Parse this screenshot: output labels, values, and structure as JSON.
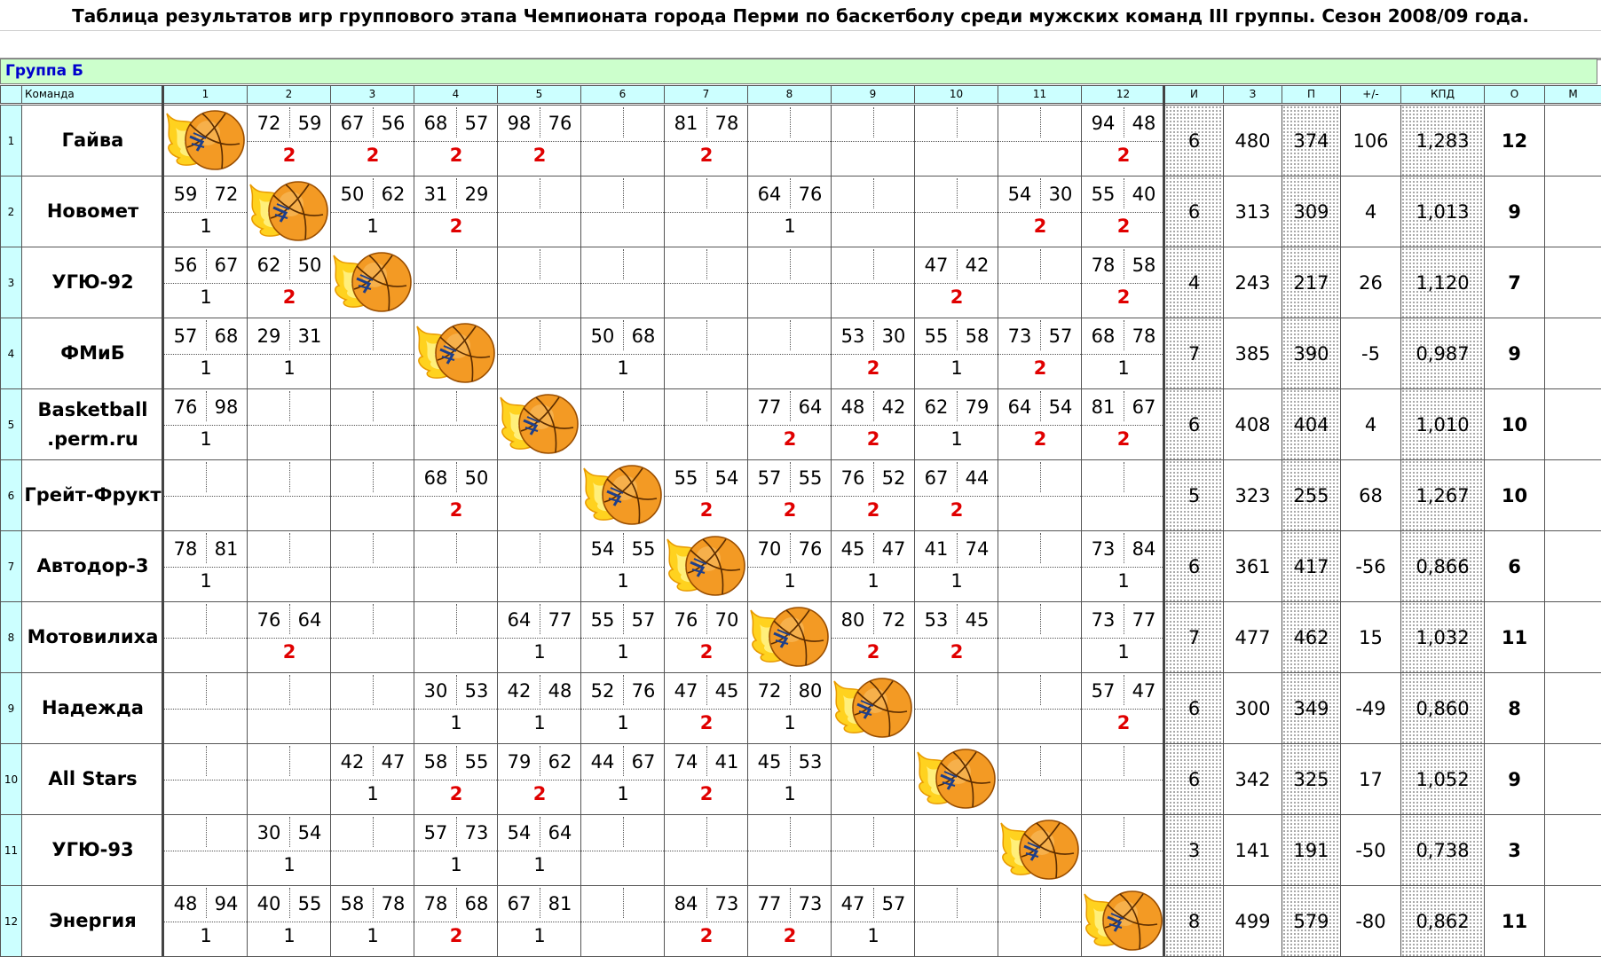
{
  "title": "Таблица результатов игр группового этапа Чемпионата города Перми по баскетболу среди мужских команд III группы. Сезон 2008/09 года.",
  "group_title": "Группа Б",
  "colors": {
    "header_bg": "#ccffff",
    "group_bg": "#ccffcc",
    "win_points": "#e00000",
    "group_text": "#0000cc"
  },
  "headers": {
    "team": "Команда",
    "opponents": [
      "1",
      "2",
      "3",
      "4",
      "5",
      "6",
      "7",
      "8",
      "9",
      "10",
      "11",
      "12"
    ],
    "stats": [
      "И",
      "З",
      "П",
      "+/-",
      "КПД",
      "О",
      "М"
    ]
  },
  "diagonal_icon": "flaming-basketball-icon",
  "rows": [
    {
      "num": "1",
      "team": "Гайва",
      "games": 6,
      "scored": 480,
      "conceded": 374,
      "diff": "106",
      "kpd": "1,283",
      "points": "12",
      "place": "",
      "cells": [
        null,
        [
          "72",
          "59",
          "2"
        ],
        [
          "67",
          "56",
          "2"
        ],
        [
          "68",
          "57",
          "2"
        ],
        [
          "98",
          "76",
          "2"
        ],
        null,
        [
          "81",
          "78",
          "2"
        ],
        null,
        null,
        null,
        null,
        [
          "94",
          "48",
          "2"
        ]
      ]
    },
    {
      "num": "2",
      "team": "Новомет",
      "games": 6,
      "scored": 313,
      "conceded": 309,
      "diff": "4",
      "kpd": "1,013",
      "points": "9",
      "place": "",
      "cells": [
        [
          "59",
          "72",
          "1"
        ],
        null,
        [
          "50",
          "62",
          "1"
        ],
        [
          "31",
          "29",
          "2"
        ],
        null,
        null,
        null,
        [
          "64",
          "76",
          "1"
        ],
        null,
        null,
        [
          "54",
          "30",
          "2"
        ],
        [
          "55",
          "40",
          "2"
        ]
      ]
    },
    {
      "num": "3",
      "team": "УГЮ-92",
      "games": 4,
      "scored": 243,
      "conceded": 217,
      "diff": "26",
      "kpd": "1,120",
      "points": "7",
      "place": "",
      "cells": [
        [
          "56",
          "67",
          "1"
        ],
        [
          "62",
          "50",
          "2"
        ],
        null,
        null,
        null,
        null,
        null,
        null,
        null,
        [
          "47",
          "42",
          "2"
        ],
        null,
        [
          "78",
          "58",
          "2"
        ]
      ]
    },
    {
      "num": "4",
      "team": "ФМиБ",
      "games": 7,
      "scored": 385,
      "conceded": 390,
      "diff": "-5",
      "kpd": "0,987",
      "points": "9",
      "place": "",
      "cells": [
        [
          "57",
          "68",
          "1"
        ],
        [
          "29",
          "31",
          "1"
        ],
        null,
        null,
        null,
        [
          "50",
          "68",
          "1"
        ],
        null,
        null,
        [
          "53",
          "30",
          "2"
        ],
        [
          "55",
          "58",
          "1"
        ],
        [
          "73",
          "57",
          "2"
        ],
        [
          "68",
          "78",
          "1"
        ]
      ]
    },
    {
      "num": "5",
      "team": "Basketball .perm.ru",
      "games": 6,
      "scored": 408,
      "conceded": 404,
      "diff": "4",
      "kpd": "1,010",
      "points": "10",
      "place": "",
      "cells": [
        [
          "76",
          "98",
          "1"
        ],
        null,
        null,
        null,
        null,
        null,
        null,
        [
          "77",
          "64",
          "2"
        ],
        [
          "48",
          "42",
          "2"
        ],
        [
          "62",
          "79",
          "1"
        ],
        [
          "64",
          "54",
          "2"
        ],
        [
          "81",
          "67",
          "2"
        ]
      ]
    },
    {
      "num": "6",
      "team": "Грейт-Фрукт",
      "games": 5,
      "scored": 323,
      "conceded": 255,
      "diff": "68",
      "kpd": "1,267",
      "points": "10",
      "place": "",
      "cells": [
        null,
        null,
        null,
        [
          "68",
          "50",
          "2"
        ],
        null,
        null,
        [
          "55",
          "54",
          "2"
        ],
        [
          "57",
          "55",
          "2"
        ],
        [
          "76",
          "52",
          "2"
        ],
        [
          "67",
          "44",
          "2"
        ],
        null,
        null
      ]
    },
    {
      "num": "7",
      "team": "Автодор-3",
      "games": 6,
      "scored": 361,
      "conceded": 417,
      "diff": "-56",
      "kpd": "0,866",
      "points": "6",
      "place": "",
      "cells": [
        [
          "78",
          "81",
          "1"
        ],
        null,
        null,
        null,
        null,
        [
          "54",
          "55",
          "1"
        ],
        null,
        [
          "70",
          "76",
          "1"
        ],
        [
          "45",
          "47",
          "1"
        ],
        [
          "41",
          "74",
          "1"
        ],
        null,
        [
          "73",
          "84",
          "1"
        ]
      ]
    },
    {
      "num": "8",
      "team": "Мотовилиха",
      "games": 7,
      "scored": 477,
      "conceded": 462,
      "diff": "15",
      "kpd": "1,032",
      "points": "11",
      "place": "",
      "cells": [
        null,
        [
          "76",
          "64",
          "2"
        ],
        null,
        null,
        [
          "64",
          "77",
          "1"
        ],
        [
          "55",
          "57",
          "1"
        ],
        [
          "76",
          "70",
          "2"
        ],
        null,
        [
          "80",
          "72",
          "2"
        ],
        [
          "53",
          "45",
          "2"
        ],
        null,
        [
          "73",
          "77",
          "1"
        ]
      ]
    },
    {
      "num": "9",
      "team": "Надежда",
      "games": 6,
      "scored": 300,
      "conceded": 349,
      "diff": "-49",
      "kpd": "0,860",
      "points": "8",
      "place": "",
      "cells": [
        null,
        null,
        null,
        [
          "30",
          "53",
          "1"
        ],
        [
          "42",
          "48",
          "1"
        ],
        [
          "52",
          "76",
          "1"
        ],
        [
          "47",
          "45",
          "2"
        ],
        [
          "72",
          "80",
          "1"
        ],
        null,
        null,
        null,
        [
          "57",
          "47",
          "2"
        ]
      ]
    },
    {
      "num": "10",
      "team": "All Stars",
      "games": 6,
      "scored": 342,
      "conceded": 325,
      "diff": "17",
      "kpd": "1,052",
      "points": "9",
      "place": "",
      "cells": [
        null,
        null,
        [
          "42",
          "47",
          "1"
        ],
        [
          "58",
          "55",
          "2"
        ],
        [
          "79",
          "62",
          "2"
        ],
        [
          "44",
          "67",
          "1"
        ],
        [
          "74",
          "41",
          "2"
        ],
        [
          "45",
          "53",
          "1"
        ],
        null,
        null,
        null,
        null
      ]
    },
    {
      "num": "11",
      "team": "УГЮ-93",
      "games": 3,
      "scored": 141,
      "conceded": 191,
      "diff": "-50",
      "kpd": "0,738",
      "points": "3",
      "place": "",
      "cells": [
        null,
        [
          "30",
          "54",
          "1"
        ],
        null,
        [
          "57",
          "73",
          "1"
        ],
        [
          "54",
          "64",
          "1"
        ],
        null,
        null,
        null,
        null,
        null,
        null,
        null
      ]
    },
    {
      "num": "12",
      "team": "Энергия",
      "games": 8,
      "scored": 499,
      "conceded": 579,
      "diff": "-80",
      "kpd": "0,862",
      "points": "11",
      "place": "",
      "cells": [
        [
          "48",
          "94",
          "1"
        ],
        [
          "40",
          "55",
          "1"
        ],
        [
          "58",
          "78",
          "1"
        ],
        [
          "78",
          "68",
          "2"
        ],
        [
          "67",
          "81",
          "1"
        ],
        null,
        [
          "84",
          "73",
          "2"
        ],
        [
          "77",
          "73",
          "2"
        ],
        [
          "47",
          "57",
          "1"
        ],
        null,
        null,
        null
      ]
    }
  ]
}
